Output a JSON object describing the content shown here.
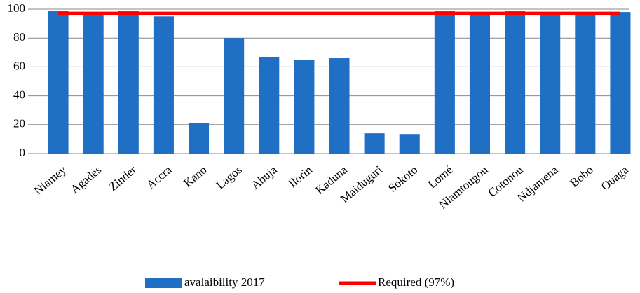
{
  "chart_data": {
    "type": "bar",
    "categories": [
      "Niamey",
      "Agadès",
      "Zinder",
      "Accra",
      "Kano",
      "Lagos",
      "Abuja",
      "Ilorin",
      "Kaduna",
      "Maiduguri",
      "Sokoto",
      "Lomé",
      "Niamtougou",
      "Cotonou",
      "Ndjamena",
      "Bobo",
      "Ouaga"
    ],
    "series": [
      {
        "name": "avalaibility 2017",
        "type": "bar",
        "color": "#1f6fc5",
        "values": [
          99,
          98,
          99,
          95,
          21,
          80,
          67,
          65,
          66,
          14,
          13.5,
          99,
          98,
          99,
          98,
          97,
          98
        ]
      },
      {
        "name": "Required (97%)",
        "type": "line",
        "color": "#ff0000",
        "values": [
          97,
          97,
          97,
          97,
          97,
          97,
          97,
          97,
          97,
          97,
          97,
          97,
          97,
          97,
          97,
          97,
          97
        ]
      }
    ],
    "ylim": [
      0,
      100
    ],
    "yticks": [
      0,
      20,
      40,
      60,
      80,
      100
    ],
    "grid": true,
    "legend": "bottom"
  }
}
